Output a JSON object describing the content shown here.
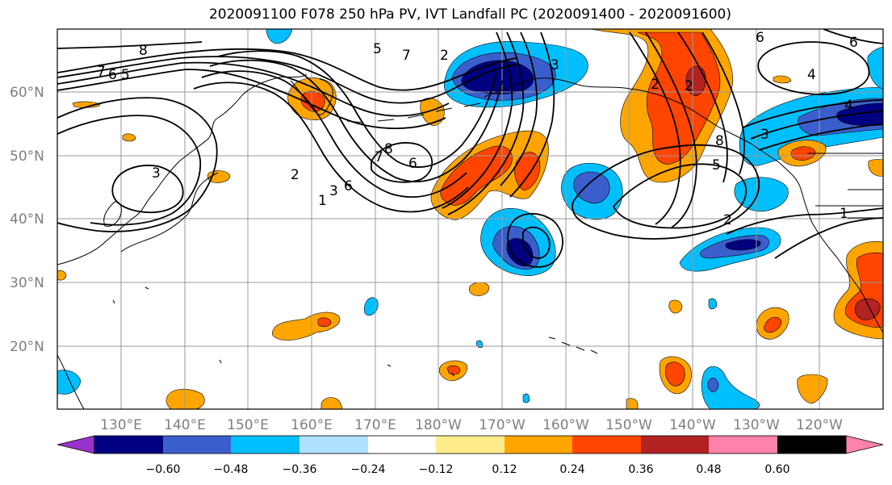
{
  "title": "2020091100 F078 250 hPa PV, IVT Landfall PC (2020091400 - 2020091600)",
  "map": {
    "lat_labels": [
      "60°N",
      "50°N",
      "40°N",
      "30°N",
      "20°N"
    ],
    "lon_labels": [
      "130°E",
      "140°E",
      "150°E",
      "160°E",
      "170°E",
      "180°W",
      "170°W",
      "160°W",
      "150°W",
      "140°W",
      "130°W",
      "120°W"
    ],
    "contour_labels": [
      "8",
      "7",
      "6",
      "5",
      "5",
      "7",
      "2",
      "3",
      "7",
      "8",
      "6",
      "3",
      "2",
      "1",
      "3",
      "6",
      "2",
      "8",
      "5",
      "2",
      "6",
      "4",
      "6",
      "4",
      "1",
      "3",
      "2"
    ]
  },
  "colorbar": {
    "colors": [
      "#9932cc",
      "#000080",
      "#3a5fcd",
      "#00bfff",
      "#b0e2ff",
      "#ffffff",
      "#ffec8b",
      "#ffa500",
      "#ff4500",
      "#b22222",
      "#ff82ab"
    ],
    "tick_labels": [
      "−0.60",
      "−0.48",
      "−0.36",
      "−0.24",
      "−0.12",
      "0.12",
      "0.24",
      "0.36",
      "0.48",
      "0.60"
    ]
  }
}
